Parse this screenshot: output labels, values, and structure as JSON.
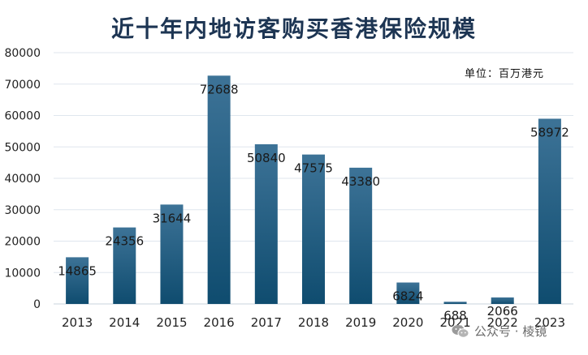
{
  "chart_data": {
    "type": "bar",
    "title": "近十年内地访客购买香港保险规模",
    "unit_note": "单位：百万港元",
    "categories": [
      "2013",
      "2014",
      "2015",
      "2016",
      "2017",
      "2018",
      "2019",
      "2020",
      "2021",
      "2022",
      "2023"
    ],
    "values": [
      14865,
      24356,
      31644,
      72688,
      50840,
      47575,
      43380,
      6824,
      688,
      2066,
      58972
    ],
    "ylim": [
      0,
      80000
    ],
    "yticks": [
      0,
      10000,
      20000,
      30000,
      40000,
      50000,
      60000,
      70000,
      80000
    ],
    "grid": true,
    "colors": {
      "bar_top": "#3d7397",
      "bar_bottom": "#0f4c6f",
      "grid": "#dfe6ee",
      "title": "#1d3553"
    }
  },
  "watermark": {
    "text": "公众号 · 棱镜",
    "icon": "wechat-icon"
  }
}
